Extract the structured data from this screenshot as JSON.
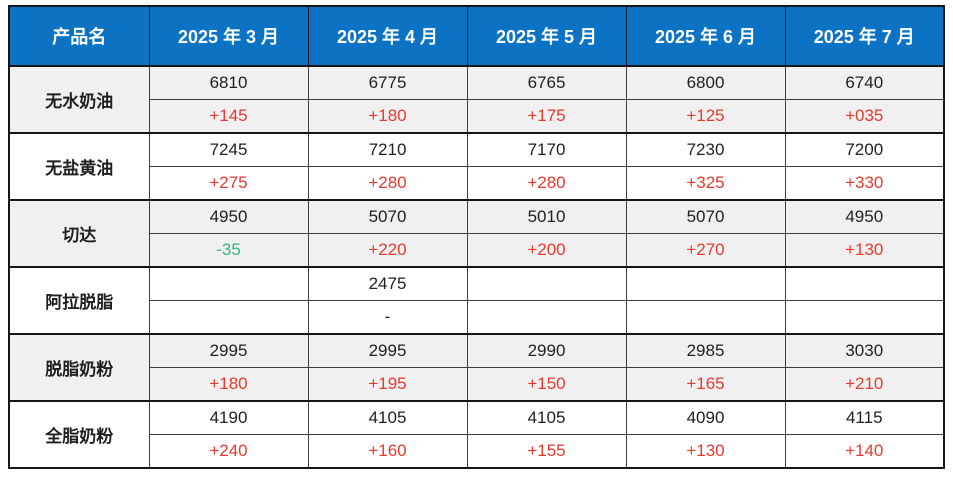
{
  "colors": {
    "header_bg": "#0b72c4",
    "header_text": "#ffffff",
    "text": "#1f1f1f",
    "up": "#e23b30",
    "down": "#31b877",
    "band_gray": "#f0f0f0",
    "band_white": "#ffffff",
    "border_strong": "#161616",
    "border_thin": "#3d3d3d"
  },
  "table": {
    "header": {
      "product": "产品名",
      "months": [
        "2025 年 3 月",
        "2025 年 4 月",
        "2025 年 5 月",
        "2025 年 6 月",
        "2025 年 7 月"
      ]
    },
    "products": [
      {
        "name": "无水奶油",
        "values": [
          "6810",
          "6775",
          "6765",
          "6800",
          "6740"
        ],
        "changes": [
          "+145",
          "+180",
          "+175",
          "+125",
          "+035"
        ],
        "trends": [
          "up",
          "up",
          "up",
          "up",
          "up"
        ]
      },
      {
        "name": "无盐黄油",
        "values": [
          "7245",
          "7210",
          "7170",
          "7230",
          "7200"
        ],
        "changes": [
          "+275",
          "+280",
          "+280",
          "+325",
          "+330"
        ],
        "trends": [
          "up",
          "up",
          "up",
          "up",
          "up"
        ]
      },
      {
        "name": "切达",
        "values": [
          "4950",
          "5070",
          "5010",
          "5070",
          "4950"
        ],
        "changes": [
          "-35",
          "+220",
          "+200",
          "+270",
          "+130"
        ],
        "trends": [
          "down",
          "up",
          "up",
          "up",
          "up"
        ]
      },
      {
        "name": "阿拉脱脂",
        "values": [
          "",
          "2475",
          "",
          "",
          ""
        ],
        "changes": [
          "",
          "-",
          "",
          "",
          ""
        ],
        "trends": [
          "none",
          "none",
          "none",
          "none",
          "none"
        ]
      },
      {
        "name": "脱脂奶粉",
        "values": [
          "2995",
          "2995",
          "2990",
          "2985",
          "3030"
        ],
        "changes": [
          "+180",
          "+195",
          "+150",
          "+165",
          "+210"
        ],
        "trends": [
          "up",
          "up",
          "up",
          "up",
          "up"
        ]
      },
      {
        "name": "全脂奶粉",
        "values": [
          "4190",
          "4105",
          "4105",
          "4090",
          "4115"
        ],
        "changes": [
          "+240",
          "+160",
          "+155",
          "+130",
          "+140"
        ],
        "trends": [
          "up",
          "up",
          "up",
          "up",
          "up"
        ]
      }
    ]
  },
  "chart_data": {
    "type": "table",
    "title": "",
    "categories": [
      "2025 年 3 月",
      "2025 年 4 月",
      "2025 年 5 月",
      "2025 年 6 月",
      "2025 年 7 月"
    ],
    "series": [
      {
        "name": "无水奶油",
        "values": [
          6810,
          6775,
          6765,
          6800,
          6740
        ],
        "changes": [
          "+145",
          "+180",
          "+175",
          "+125",
          "+035"
        ]
      },
      {
        "name": "无盐黄油",
        "values": [
          7245,
          7210,
          7170,
          7230,
          7200
        ],
        "changes": [
          "+275",
          "+280",
          "+280",
          "+325",
          "+330"
        ]
      },
      {
        "name": "切达",
        "values": [
          4950,
          5070,
          5010,
          5070,
          4950
        ],
        "changes": [
          "-35",
          "+220",
          "+200",
          "+270",
          "+130"
        ]
      },
      {
        "name": "阿拉脱脂",
        "values": [
          null,
          2475,
          null,
          null,
          null
        ],
        "changes": [
          null,
          "-",
          null,
          null,
          null
        ]
      },
      {
        "name": "脱脂奶粉",
        "values": [
          2995,
          2995,
          2990,
          2985,
          3030
        ],
        "changes": [
          "+180",
          "+195",
          "+150",
          "+165",
          "+210"
        ]
      },
      {
        "name": "全脂奶粉",
        "values": [
          4190,
          4105,
          4105,
          4090,
          4115
        ],
        "changes": [
          "+240",
          "+160",
          "+155",
          "+130",
          "+140"
        ]
      }
    ]
  }
}
